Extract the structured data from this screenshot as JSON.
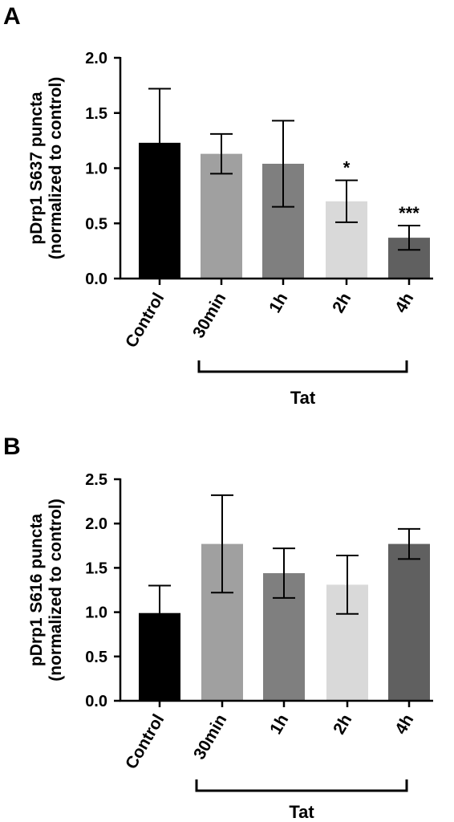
{
  "chart_data": [
    {
      "panel": "A",
      "type": "bar",
      "ylabel_line1": "pDrp1 S637 puncta",
      "ylabel_line2": "(normalized to control)",
      "categories": [
        "Control",
        "30min",
        "1h",
        "2h",
        "4h"
      ],
      "values": [
        1.23,
        1.13,
        1.04,
        0.7,
        0.37
      ],
      "error": [
        0.49,
        0.18,
        0.39,
        0.19,
        0.11
      ],
      "significance": [
        "",
        "",
        "",
        "*",
        "***"
      ],
      "bar_colors": [
        "#000000",
        "#a0a0a0",
        "#7f7f7f",
        "#d9d9d9",
        "#606060"
      ],
      "ylim": [
        0,
        2.0
      ],
      "yticks": [
        "0.0",
        "0.5",
        "1.0",
        "1.5",
        "2.0"
      ],
      "bracket_label": "Tat",
      "grid": false
    },
    {
      "panel": "B",
      "type": "bar",
      "ylabel_line1": "pDrp1 S616 puncta",
      "ylabel_line2": "(normalized to control)",
      "categories": [
        "Control",
        "30min",
        "1h",
        "2h",
        "4h"
      ],
      "values": [
        0.99,
        1.77,
        1.44,
        1.31,
        1.77
      ],
      "error": [
        0.31,
        0.55,
        0.28,
        0.33,
        0.17
      ],
      "significance": [
        "",
        "",
        "",
        "",
        ""
      ],
      "bar_colors": [
        "#000000",
        "#a0a0a0",
        "#7f7f7f",
        "#d9d9d9",
        "#606060"
      ],
      "ylim": [
        0,
        2.5
      ],
      "yticks": [
        "0.0",
        "0.5",
        "1.0",
        "1.5",
        "2.0",
        "2.5"
      ],
      "bracket_label": "Tat",
      "grid": false
    }
  ]
}
